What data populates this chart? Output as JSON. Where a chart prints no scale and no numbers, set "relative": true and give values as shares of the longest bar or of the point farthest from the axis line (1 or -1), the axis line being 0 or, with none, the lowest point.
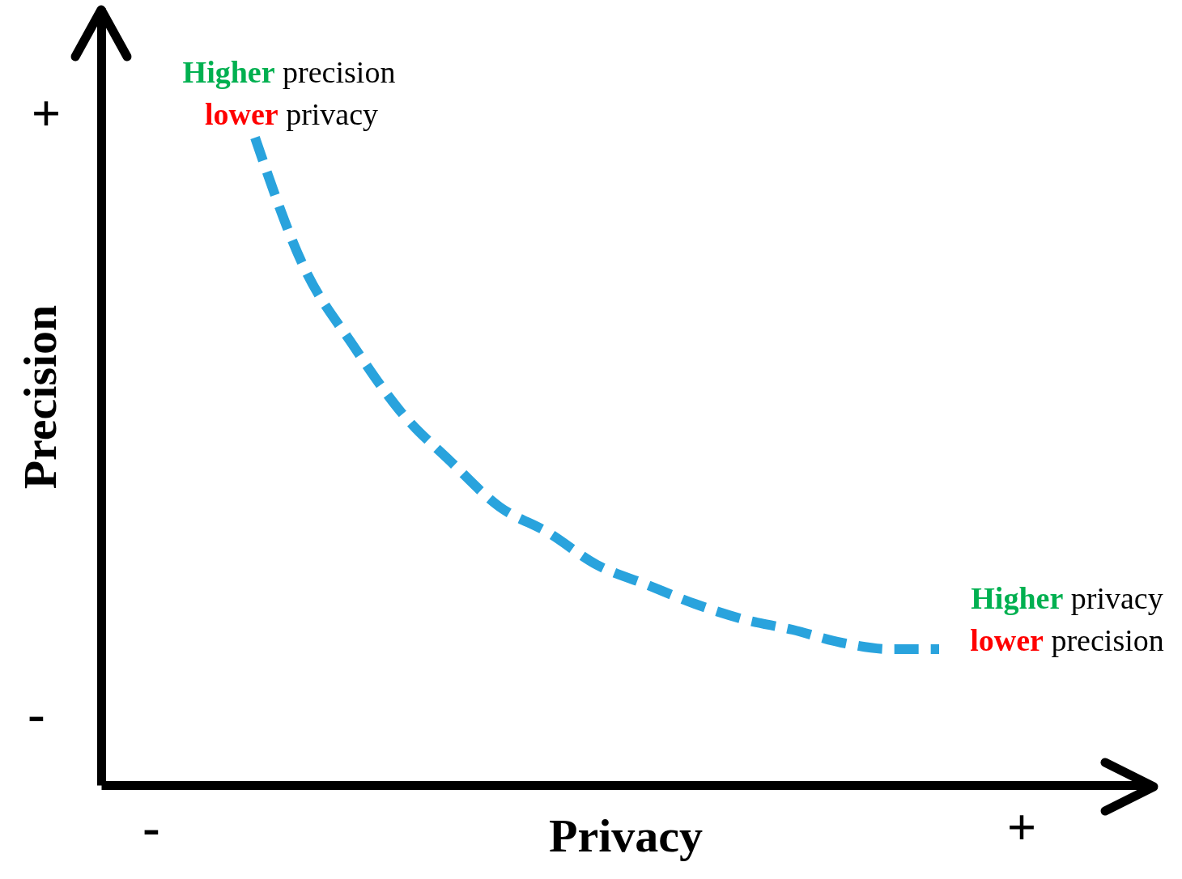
{
  "chart_data": {
    "type": "line",
    "relative": true,
    "xlabel": "Privacy",
    "ylabel": "Precision",
    "categories": [
      null,
      null,
      null,
      null,
      null,
      null,
      null,
      null,
      null,
      null,
      null,
      null,
      null,
      null,
      null
    ],
    "values": [
      1.0,
      0.8,
      0.68,
      0.575,
      0.5,
      0.43,
      0.39,
      0.34,
      0.31,
      0.28,
      0.256,
      0.24,
      0.22,
      0.21,
      0.21
    ],
    "color": "#29a3dd",
    "line_style": "dashed",
    "annotations": [
      "Higher precision",
      "lower privacy",
      "Higher privacy",
      "lower precision",
      "+",
      "-",
      "-",
      "+"
    ]
  }
}
